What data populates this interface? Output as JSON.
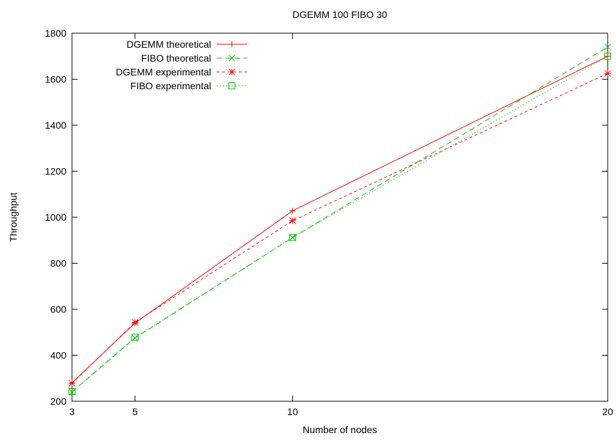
{
  "chart_data": {
    "type": "line",
    "title": "DGEMM 100 FIBO 30",
    "xlabel": "Number of nodes",
    "ylabel": "Throughput",
    "x": [
      3,
      5,
      10,
      20
    ],
    "xticks": [
      3,
      5,
      10,
      20
    ],
    "yticks": [
      200,
      400,
      600,
      800,
      1000,
      1200,
      1400,
      1600,
      1800
    ],
    "xlim": [
      3,
      20
    ],
    "ylim": [
      200,
      1800
    ],
    "grid": false,
    "legend_position": "top-left",
    "series": [
      {
        "name": "DGEMM theoretical",
        "values": [
          280,
          540,
          1028,
          1700
        ],
        "color": "#ff0000",
        "dash": "solid",
        "marker": "plus"
      },
      {
        "name": "FIBO theoretical",
        "values": [
          240,
          475,
          912,
          1740
        ],
        "color": "#00c000",
        "dash": "long-dash",
        "marker": "x"
      },
      {
        "name": "DGEMM experimental",
        "values": [
          278,
          543,
          985,
          1625
        ],
        "color": "#ff0000",
        "dash": "short-dash",
        "marker": "star"
      },
      {
        "name": "FIBO experimental",
        "values": [
          242,
          478,
          912,
          1700
        ],
        "color": "#00c000",
        "dash": "dotted",
        "marker": "box"
      }
    ]
  }
}
